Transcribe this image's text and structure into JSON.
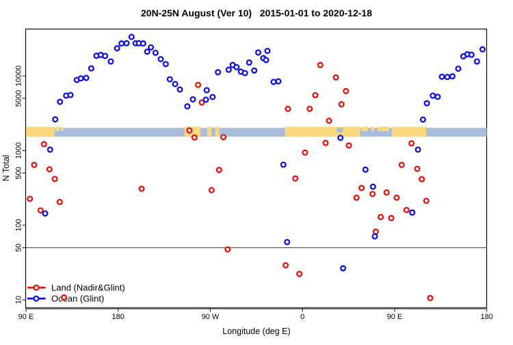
{
  "title": "20N-25N August (Ver 10)   2015-01-01 to 2020-12-18",
  "legend": {
    "items": [
      {
        "label": "Land (Nadir&Glint)",
        "color": "#F60D06"
      },
      {
        "label": "Ocean (Glint)",
        "color": "#0D0DF2"
      }
    ]
  },
  "chart_data": {
    "type": "scatter",
    "title": "20N-25N August (Ver 10)   2015-01-01 to 2020-12-18",
    "xlabel": "Longitude (deg E)",
    "ylabel": "N Total",
    "x_axis": {
      "note": "longitude unwrapped eastward, 90E around globe to 180 (90..540 deg E)",
      "range": [
        90,
        540
      ],
      "ticks": [
        {
          "value": 90,
          "label": "90 E"
        },
        {
          "value": 180,
          "label": "180"
        },
        {
          "value": 270,
          "label": "90 W"
        },
        {
          "value": 360,
          "label": "0"
        },
        {
          "value": 450,
          "label": "90 E"
        },
        {
          "value": 540,
          "label": "180"
        }
      ]
    },
    "y_axis": {
      "scale": "log10",
      "range": [
        7.9,
        42000
      ],
      "ticks": [
        10,
        50,
        100,
        500,
        1000,
        5000,
        10000
      ]
    },
    "reference_line_y": 50,
    "grid": false,
    "legend_position": "bottom-left",
    "series": [
      {
        "name": "Land (Nadir&Glint)",
        "color": "#F60D06",
        "marker": "open-circle",
        "points": [
          [
            107.6,
            1220
          ],
          [
            98.0,
            644
          ],
          [
            112.9,
            562
          ],
          [
            118.1,
            417
          ],
          [
            93.8,
            226
          ],
          [
            122.9,
            205
          ],
          [
            104.2,
            158
          ],
          [
            202.9,
            308
          ],
          [
            127.1,
            10.8
          ],
          [
            249.5,
            1860
          ],
          [
            254.5,
            1500
          ],
          [
            258.1,
            7570
          ],
          [
            261.7,
            4410
          ],
          [
            282.8,
            1510
          ],
          [
            278.6,
            551
          ],
          [
            271.2,
            295
          ],
          [
            286.9,
            47.5
          ],
          [
            343.6,
            29.1
          ],
          [
            357.0,
            22.3
          ],
          [
            345.8,
            3620
          ],
          [
            353.0,
            423
          ],
          [
            362.5,
            940
          ],
          [
            367.0,
            3620
          ],
          [
            372.5,
            5520
          ],
          [
            377.4,
            14000
          ],
          [
            382.6,
            1270
          ],
          [
            385.9,
            2510
          ],
          [
            392.6,
            9550
          ],
          [
            398.1,
            4170
          ],
          [
            402.4,
            6270
          ],
          [
            405.3,
            1170
          ],
          [
            412.8,
            234
          ],
          [
            417.7,
            316
          ],
          [
            428.4,
            262
          ],
          [
            442.2,
            275
          ],
          [
            436.4,
            129
          ],
          [
            446.7,
            125
          ],
          [
            431.6,
            82.2
          ],
          [
            452.0,
            234
          ],
          [
            456.9,
            644
          ],
          [
            461.6,
            160
          ],
          [
            466.5,
            1250
          ],
          [
            472.1,
            571
          ],
          [
            476.5,
            414
          ],
          [
            480.9,
            212
          ],
          [
            484.7,
            10.6
          ]
        ]
      },
      {
        "name": "Ocean (Glint)",
        "color": "#0D0DF2",
        "marker": "open-circle",
        "points": [
          [
            118.5,
            2620
          ],
          [
            123.2,
            4500
          ],
          [
            129.2,
            5440
          ],
          [
            133.4,
            5560
          ],
          [
            139.6,
            8830
          ],
          [
            143.6,
            9270
          ],
          [
            148.8,
            9400
          ],
          [
            153.7,
            12600
          ],
          [
            158.8,
            18600
          ],
          [
            163.0,
            19100
          ],
          [
            167.3,
            18500
          ],
          [
            172.8,
            15600
          ],
          [
            179.0,
            23400
          ],
          [
            183.3,
            27200
          ],
          [
            188.2,
            27400
          ],
          [
            193.1,
            33300
          ],
          [
            197.1,
            27400
          ],
          [
            200.2,
            27400
          ],
          [
            204.4,
            27200
          ],
          [
            208.4,
            21100
          ],
          [
            212.0,
            24100
          ],
          [
            216.5,
            20400
          ],
          [
            221.6,
            16800
          ],
          [
            226.5,
            14400
          ],
          [
            230.5,
            9020
          ],
          [
            235.6,
            7780
          ],
          [
            240.3,
            6580
          ],
          [
            247.6,
            3910
          ],
          [
            253.0,
            4860
          ],
          [
            265.7,
            4800
          ],
          [
            266.5,
            6440
          ],
          [
            272.2,
            5210
          ],
          [
            277.5,
            11200
          ],
          [
            287.9,
            12100
          ],
          [
            291.9,
            14000
          ],
          [
            295.7,
            13100
          ],
          [
            299.9,
            11400
          ],
          [
            303.8,
            10900
          ],
          [
            308.0,
            15100
          ],
          [
            312.9,
            11800
          ],
          [
            316.8,
            20600
          ],
          [
            321.8,
            17300
          ],
          [
            324.5,
            16300
          ],
          [
            325.8,
            21600
          ],
          [
            331.8,
            8300
          ],
          [
            336.5,
            8470
          ],
          [
            341.4,
            648
          ],
          [
            345.0,
            59.6
          ],
          [
            397.1,
            1480
          ],
          [
            399.7,
            26.5
          ],
          [
            421.5,
            556
          ],
          [
            428.9,
            328
          ],
          [
            430.7,
            71
          ],
          [
            467.2,
            148
          ],
          [
            472.8,
            1030
          ],
          [
            477.7,
            2600
          ],
          [
            481.5,
            4310
          ],
          [
            487.3,
            5440
          ],
          [
            492.1,
            5250
          ],
          [
            496.2,
            9750
          ],
          [
            501.5,
            9660
          ],
          [
            506.4,
            9880
          ],
          [
            512.2,
            12500
          ],
          [
            517.1,
            18300
          ],
          [
            521.1,
            19500
          ],
          [
            525.1,
            19200
          ],
          [
            530.4,
            15600
          ],
          [
            535.8,
            22700
          ],
          [
            113.6,
            1030
          ],
          [
            108.7,
            144
          ]
        ]
      }
    ],
    "map_strip": {
      "description": "land/ocean strip for 20N-25N plotted across the longitude axis",
      "ocean_color": "#A7BDDB",
      "land_color": "#FAD87E",
      "ocean_range": [
        90,
        540
      ],
      "land_segments": [
        [
          90,
          118
        ],
        [
          244.8,
          260.3
        ],
        [
          267,
          271
        ],
        [
          274.8,
          278.8
        ],
        [
          342.9,
          416.4
        ],
        [
          447.4,
          480.8
        ]
      ],
      "land_dashes_top": [
        [
          118.5,
          122.5
        ],
        [
          124,
          126.5
        ],
        [
          417.5,
          424
        ],
        [
          427,
          430
        ],
        [
          433.5,
          444.5
        ]
      ],
      "ocean_notches_top": [
        [
          393.5,
          399.5
        ]
      ]
    }
  }
}
